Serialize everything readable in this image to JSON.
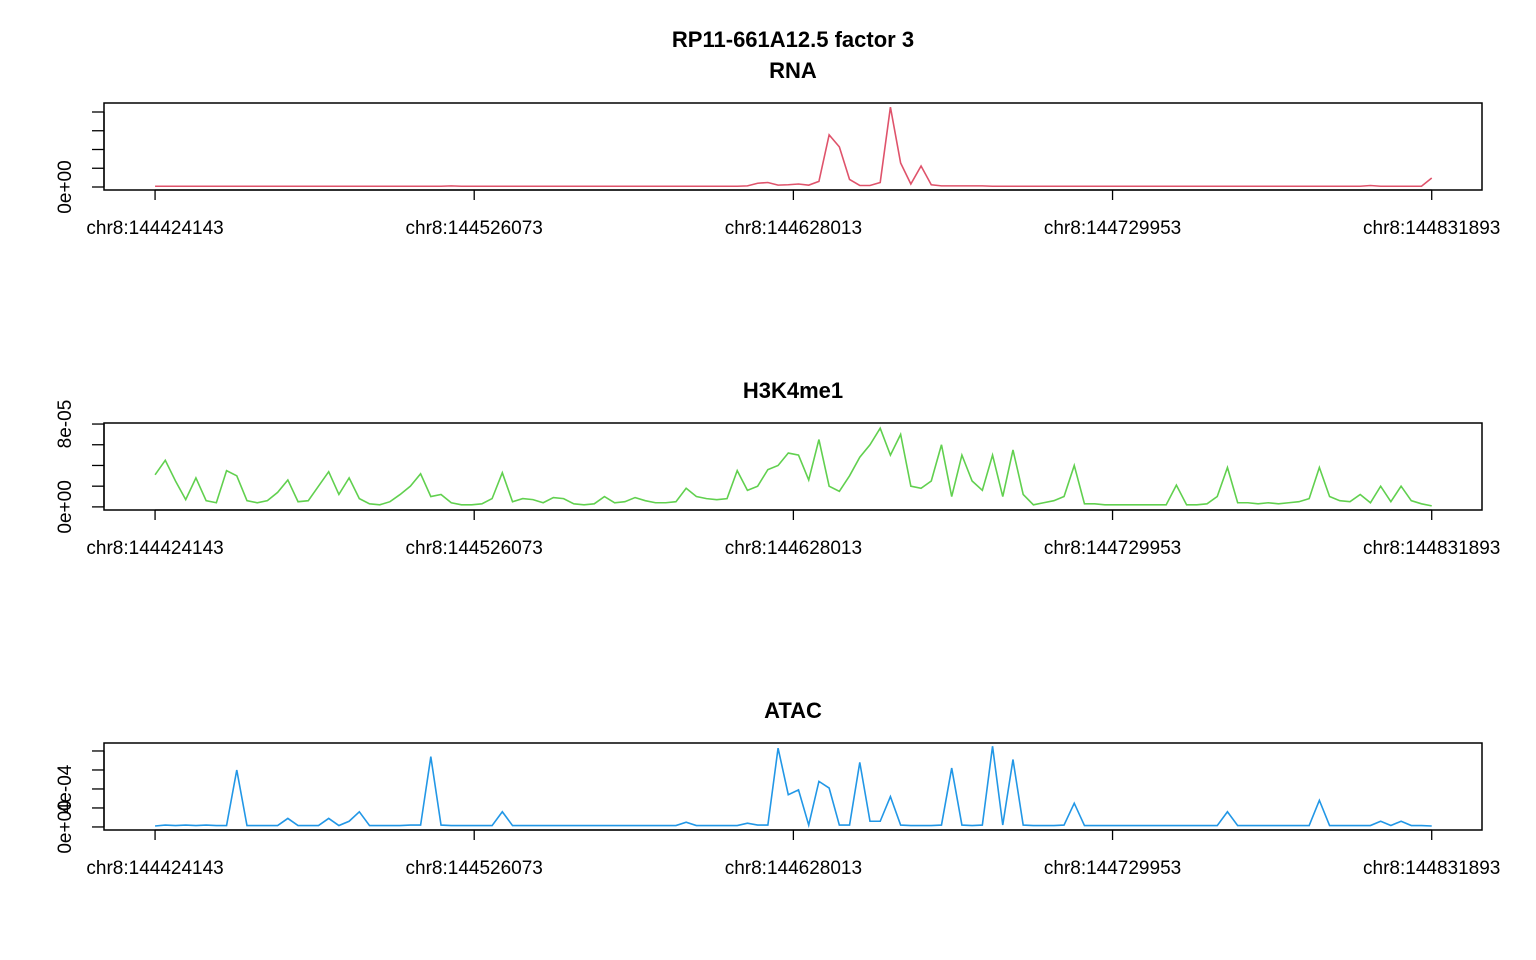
{
  "title": "RP11-661A12.5 factor 3",
  "chart_data": [
    {
      "type": "line",
      "title": "RNA",
      "color": "#DF536B",
      "x": [
        144424143,
        144427405,
        144430667,
        144433929,
        144437191,
        144440453,
        144443715,
        144446977,
        144450239,
        144453501,
        144456763,
        144460025,
        144463287,
        144466549,
        144469811,
        144473073,
        144476335,
        144479597,
        144482859,
        144486121,
        144489383,
        144492645,
        144495907,
        144499169,
        144502431,
        144505693,
        144508955,
        144512217,
        144515479,
        144518741,
        144522003,
        144525265,
        144528527,
        144531789,
        144535051,
        144538313,
        144541575,
        144544837,
        144548099,
        144551361,
        144554623,
        144557885,
        144561147,
        144564409,
        144567671,
        144570933,
        144574195,
        144577457,
        144580719,
        144583981,
        144587243,
        144590505,
        144593767,
        144597029,
        144600291,
        144603553,
        144606815,
        144610077,
        144613339,
        144616601,
        144619863,
        144623125,
        144626387,
        144629649,
        144632911,
        144636173,
        144639435,
        144642697,
        144645959,
        144649221,
        144652483,
        144655745,
        144659007,
        144662269,
        144665531,
        144668793,
        144672055,
        144675317,
        144678579,
        144681841,
        144685103,
        144688365,
        144691627,
        144694889,
        144698151,
        144701413,
        144704675,
        144707937,
        144711199,
        144714461,
        144717723,
        144720985,
        144724247,
        144727509,
        144730771,
        144734033,
        144737295,
        144740557,
        144743819,
        144747081,
        144750343,
        144753605,
        144756867,
        144760129,
        144763391,
        144766653,
        144769915,
        144773177,
        144776439,
        144779701,
        144782963,
        144786225,
        144789487,
        144792749,
        144796011,
        144799273,
        144802535,
        144805797,
        144809059,
        144812321,
        144815583,
        144818845,
        144822107,
        144825369,
        144828631,
        144831893
      ],
      "values": [
        2e-05,
        2e-05,
        2e-05,
        2e-05,
        2e-05,
        2e-05,
        2e-05,
        2e-05,
        2e-05,
        2e-05,
        2e-05,
        2e-05,
        2e-05,
        2e-05,
        2e-05,
        2e-05,
        2e-05,
        2e-05,
        2e-05,
        2e-05,
        2e-05,
        2e-05,
        2e-05,
        2e-05,
        2e-05,
        2e-05,
        2e-05,
        2e-05,
        2e-05,
        3e-05,
        2e-05,
        2e-05,
        2e-05,
        2e-05,
        2e-05,
        2e-05,
        2e-05,
        2e-05,
        2e-05,
        2e-05,
        2e-05,
        2e-05,
        2e-05,
        2e-05,
        2e-05,
        2e-05,
        2e-05,
        2e-05,
        2e-05,
        2e-05,
        2e-05,
        2e-05,
        2e-05,
        2e-05,
        2e-05,
        2e-05,
        2e-05,
        2e-05,
        3e-05,
        0.0001,
        0.00012,
        5e-05,
        6e-05,
        8e-05,
        5e-05,
        0.00015,
        0.00139,
        0.00107,
        0.0002,
        4e-05,
        4e-05,
        0.00012,
        0.00213,
        0.00064,
        8e-05,
        0.00056,
        6e-05,
        3e-05,
        3e-05,
        3e-05,
        3e-05,
        3e-05,
        2e-05,
        2e-05,
        2e-05,
        2e-05,
        2e-05,
        2e-05,
        2e-05,
        2e-05,
        2e-05,
        2e-05,
        2e-05,
        2e-05,
        2e-05,
        2e-05,
        2e-05,
        2e-05,
        2e-05,
        2e-05,
        2e-05,
        2e-05,
        2e-05,
        2e-05,
        2e-05,
        2e-05,
        2e-05,
        2e-05,
        2e-05,
        2e-05,
        2e-05,
        2e-05,
        2e-05,
        2e-05,
        2e-05,
        2e-05,
        2e-05,
        2e-05,
        2e-05,
        4e-05,
        2e-05,
        2e-05,
        2e-05,
        2e-05,
        2e-05,
        0.00024
      ],
      "xlim": [
        144407833,
        144847953
      ],
      "xticks": [
        {
          "value": 144424143,
          "label": "chr8:144424143"
        },
        {
          "value": 144526073,
          "label": "chr8:144526073"
        },
        {
          "value": 144628013,
          "label": "chr8:144628013"
        },
        {
          "value": 144729953,
          "label": "chr8:144729953"
        },
        {
          "value": 144831893,
          "label": "chr8:144831893"
        }
      ],
      "ylim": [
        -8e-05,
        0.00224
      ],
      "yticks": [
        {
          "value": 0,
          "label": "0e+00"
        },
        {
          "value": 0.0005,
          "label": null
        },
        {
          "value": 0.001,
          "label": null
        },
        {
          "value": 0.0015,
          "label": null
        },
        {
          "value": 0.002,
          "label": null
        }
      ]
    },
    {
      "type": "line",
      "title": "H3K4me1",
      "color": "#61D04F",
      "x": [
        144424143,
        144427405,
        144430667,
        144433929,
        144437191,
        144440453,
        144443715,
        144446977,
        144450239,
        144453501,
        144456763,
        144460025,
        144463287,
        144466549,
        144469811,
        144473073,
        144476335,
        144479597,
        144482859,
        144486121,
        144489383,
        144492645,
        144495907,
        144499169,
        144502431,
        144505693,
        144508955,
        144512217,
        144515479,
        144518741,
        144522003,
        144525265,
        144528527,
        144531789,
        144535051,
        144538313,
        144541575,
        144544837,
        144548099,
        144551361,
        144554623,
        144557885,
        144561147,
        144564409,
        144567671,
        144570933,
        144574195,
        144577457,
        144580719,
        144583981,
        144587243,
        144590505,
        144593767,
        144597029,
        144600291,
        144603553,
        144606815,
        144610077,
        144613339,
        144616601,
        144619863,
        144623125,
        144626387,
        144629649,
        144632911,
        144636173,
        144639435,
        144642697,
        144645959,
        144649221,
        144652483,
        144655745,
        144659007,
        144662269,
        144665531,
        144668793,
        144672055,
        144675317,
        144678579,
        144681841,
        144685103,
        144688365,
        144691627,
        144694889,
        144698151,
        144701413,
        144704675,
        144707937,
        144711199,
        144714461,
        144717723,
        144720985,
        144724247,
        144727509,
        144730771,
        144734033,
        144737295,
        144740557,
        144743819,
        144747081,
        144750343,
        144753605,
        144756867,
        144760129,
        144763391,
        144766653,
        144769915,
        144773177,
        144776439,
        144779701,
        144782963,
        144786225,
        144789487,
        144792749,
        144796011,
        144799273,
        144802535,
        144805797,
        144809059,
        144812321,
        144815583,
        144818845,
        144822107,
        144825369,
        144828631,
        144831893
      ],
      "values": [
        3.1e-05,
        4.5e-05,
        2.5e-05,
        7e-06,
        2.8e-05,
        6e-06,
        4e-06,
        3.5e-05,
        3e-05,
        6e-06,
        4e-06,
        6e-06,
        1.4e-05,
        2.6e-05,
        5e-06,
        6e-06,
        2e-05,
        3.4e-05,
        1.2e-05,
        2.8e-05,
        8e-06,
        3e-06,
        2e-06,
        5e-06,
        1.2e-05,
        2e-05,
        3.2e-05,
        1e-05,
        1.2e-05,
        4e-06,
        2e-06,
        2e-06,
        3e-06,
        8e-06,
        3.3e-05,
        5e-06,
        8e-06,
        7e-06,
        4e-06,
        9e-06,
        8e-06,
        3e-06,
        2e-06,
        3e-06,
        1e-05,
        4e-06,
        5e-06,
        9e-06,
        6e-06,
        4e-06,
        4e-06,
        5e-06,
        1.8e-05,
        1e-05,
        8e-06,
        7e-06,
        8e-06,
        3.5e-05,
        1.6e-05,
        2e-05,
        3.6e-05,
        4e-05,
        5.2e-05,
        5e-05,
        2.6e-05,
        6.5e-05,
        2e-05,
        1.5e-05,
        3e-05,
        4.8e-05,
        6e-05,
        7.6e-05,
        5e-05,
        7e-05,
        2e-05,
        1.8e-05,
        2.5e-05,
        6e-05,
        1e-05,
        5e-05,
        2.5e-05,
        1.6e-05,
        5e-05,
        1e-05,
        5.5e-05,
        1.2e-05,
        2e-06,
        4e-06,
        6e-06,
        1e-05,
        4e-05,
        3e-06,
        3e-06,
        2e-06,
        2e-06,
        2e-06,
        2e-06,
        2e-06,
        2e-06,
        2e-06,
        2.1e-05,
        2e-06,
        2e-06,
        3e-06,
        1e-05,
        3.8e-05,
        4e-06,
        4e-06,
        3e-06,
        4e-06,
        3e-06,
        4e-06,
        5e-06,
        8e-06,
        3.8e-05,
        1e-05,
        6e-06,
        5e-06,
        1.2e-05,
        4e-06,
        2e-05,
        5e-06,
        2e-05,
        6e-06,
        3e-06,
        1e-06
      ],
      "xlim": [
        144407833,
        144847953
      ],
      "xticks": [
        {
          "value": 144424143,
          "label": "chr8:144424143"
        },
        {
          "value": 144526073,
          "label": "chr8:144526073"
        },
        {
          "value": 144628013,
          "label": "chr8:144628013"
        },
        {
          "value": 144729953,
          "label": "chr8:144729953"
        },
        {
          "value": 144831893,
          "label": "chr8:144831893"
        }
      ],
      "ylim": [
        -3e-06,
        8.1e-05
      ],
      "yticks": [
        {
          "value": 0,
          "label": "0e+00"
        },
        {
          "value": 2e-05,
          "label": null
        },
        {
          "value": 4e-05,
          "label": null
        },
        {
          "value": 6e-05,
          "label": null
        },
        {
          "value": 8e-05,
          "label": "8e-05"
        }
      ]
    },
    {
      "type": "line",
      "title": "ATAC",
      "color": "#2297E6",
      "x": [
        144424143,
        144427405,
        144430667,
        144433929,
        144437191,
        144440453,
        144443715,
        144446977,
        144450239,
        144453501,
        144456763,
        144460025,
        144463287,
        144466549,
        144469811,
        144473073,
        144476335,
        144479597,
        144482859,
        144486121,
        144489383,
        144492645,
        144495907,
        144499169,
        144502431,
        144505693,
        144508955,
        144512217,
        144515479,
        144518741,
        144522003,
        144525265,
        144528527,
        144531789,
        144535051,
        144538313,
        144541575,
        144544837,
        144548099,
        144551361,
        144554623,
        144557885,
        144561147,
        144564409,
        144567671,
        144570933,
        144574195,
        144577457,
        144580719,
        144583981,
        144587243,
        144590505,
        144593767,
        144597029,
        144600291,
        144603553,
        144606815,
        144610077,
        144613339,
        144616601,
        144619863,
        144623125,
        144626387,
        144629649,
        144632911,
        144636173,
        144639435,
        144642697,
        144645959,
        144649221,
        144652483,
        144655745,
        144659007,
        144662269,
        144665531,
        144668793,
        144672055,
        144675317,
        144678579,
        144681841,
        144685103,
        144688365,
        144691627,
        144694889,
        144698151,
        144701413,
        144704675,
        144707937,
        144711199,
        144714461,
        144717723,
        144720985,
        144724247,
        144727509,
        144730771,
        144734033,
        144737295,
        144740557,
        144743819,
        144747081,
        144750343,
        144753605,
        144756867,
        144760129,
        144763391,
        144766653,
        144769915,
        144773177,
        144776439,
        144779701,
        144782963,
        144786225,
        144789487,
        144792749,
        144796011,
        144799273,
        144802535,
        144805797,
        144809059,
        144812321,
        144815583,
        144818845,
        144822107,
        144825369,
        144828631,
        144831893
      ],
      "values": [
        1e-05,
        2e-05,
        1.5e-05,
        2e-05,
        1.5e-05,
        2e-05,
        1.5e-05,
        1.5e-05,
        0.0006,
        1.5e-05,
        1.5e-05,
        1.5e-05,
        1.5e-05,
        9e-05,
        1.5e-05,
        1.5e-05,
        1.5e-05,
        9e-05,
        1.5e-05,
        6e-05,
        0.00016,
        1.5e-05,
        1.5e-05,
        1.5e-05,
        1.5e-05,
        2e-05,
        2e-05,
        0.00074,
        2e-05,
        1.5e-05,
        1.5e-05,
        1.5e-05,
        1.5e-05,
        1.5e-05,
        0.00016,
        1.5e-05,
        1.5e-05,
        1.5e-05,
        1.5e-05,
        1.5e-05,
        1.5e-05,
        1.5e-05,
        1.5e-05,
        1.5e-05,
        1.5e-05,
        1.5e-05,
        1.5e-05,
        1.5e-05,
        1.5e-05,
        1.5e-05,
        1.5e-05,
        1.5e-05,
        5e-05,
        1.5e-05,
        1.5e-05,
        1.5e-05,
        1.5e-05,
        1.5e-05,
        4e-05,
        2e-05,
        2e-05,
        0.00083,
        0.00034,
        0.00039,
        2e-05,
        0.00048,
        0.00041,
        2e-05,
        2e-05,
        0.00068,
        6e-05,
        6e-05,
        0.00032,
        2e-05,
        1.5e-05,
        1.5e-05,
        1.5e-05,
        2e-05,
        0.00062,
        2e-05,
        1.5e-05,
        2e-05,
        0.00085,
        2e-05,
        0.00071,
        2e-05,
        1.5e-05,
        1.5e-05,
        1.5e-05,
        2e-05,
        0.00025,
        1.5e-05,
        1.5e-05,
        1.5e-05,
        1.5e-05,
        1.5e-05,
        1.5e-05,
        1.5e-05,
        1.5e-05,
        1.5e-05,
        1.5e-05,
        1.5e-05,
        1.5e-05,
        1.5e-05,
        1.5e-05,
        0.00016,
        1.5e-05,
        1.5e-05,
        1.5e-05,
        1.5e-05,
        1.5e-05,
        1.5e-05,
        1.5e-05,
        1.5e-05,
        0.00028,
        1.5e-05,
        1.5e-05,
        1.5e-05,
        1.5e-05,
        1.5e-05,
        6e-05,
        1.5e-05,
        6e-05,
        1.5e-05,
        1.5e-05,
        1e-05
      ],
      "xlim": [
        144407833,
        144847953
      ],
      "xticks": [
        {
          "value": 144424143,
          "label": "chr8:144424143"
        },
        {
          "value": 144526073,
          "label": "chr8:144526073"
        },
        {
          "value": 144628013,
          "label": "chr8:144628013"
        },
        {
          "value": 144729953,
          "label": "chr8:144729953"
        },
        {
          "value": 144831893,
          "label": "chr8:144831893"
        }
      ],
      "ylim": [
        -3.2e-05,
        0.000884
      ],
      "yticks": [
        {
          "value": 0,
          "label": "0e+00"
        },
        {
          "value": 0.0002,
          "label": null
        },
        {
          "value": 0.0004,
          "label": "4e-04"
        },
        {
          "value": 0.0006,
          "label": null
        },
        {
          "value": 0.0008,
          "label": null
        }
      ]
    }
  ]
}
